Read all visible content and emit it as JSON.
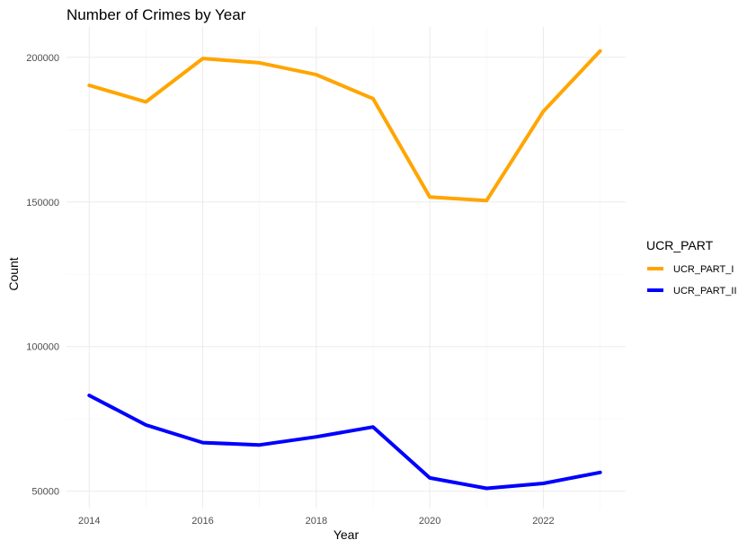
{
  "chart_data": {
    "type": "line",
    "title": "Number of Crimes by Year",
    "xlabel": "Year",
    "ylabel": "Count",
    "x": [
      2014,
      2015,
      2016,
      2017,
      2018,
      2019,
      2020,
      2021,
      2022,
      2023
    ],
    "x_ticks": [
      2014,
      2016,
      2018,
      2020,
      2022
    ],
    "y_ticks": [
      50000,
      100000,
      150000,
      200000
    ],
    "xlim": [
      2013.6,
      2023.45
    ],
    "ylim": [
      44000,
      210500
    ],
    "grid": true,
    "legend": {
      "title": "UCR_PART",
      "position": "right"
    },
    "series": [
      {
        "name": "UCR_PART_I",
        "color": "#FFA500",
        "values": [
          190300,
          184600,
          199600,
          198100,
          194000,
          185700,
          151700,
          150500,
          181300,
          202200
        ]
      },
      {
        "name": "UCR_PART_II",
        "color": "#0000FF",
        "values": [
          83100,
          72900,
          66800,
          66000,
          68800,
          72200,
          54600,
          51000,
          52700,
          56500
        ]
      }
    ]
  }
}
